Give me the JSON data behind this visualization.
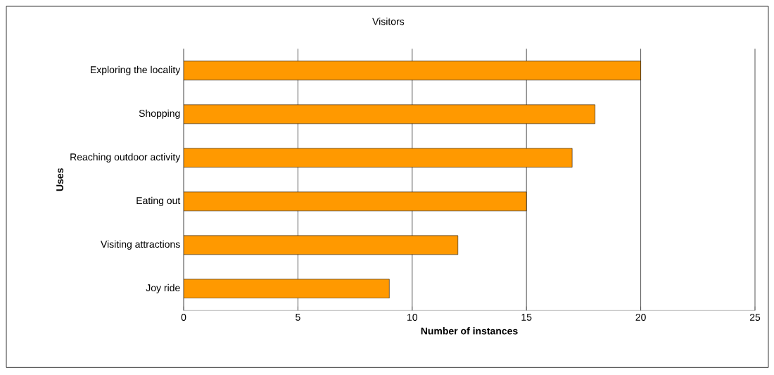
{
  "chart_data": {
    "type": "bar",
    "orientation": "horizontal",
    "title": "Visitors",
    "xlabel": "Number of instances",
    "ylabel": "Uses",
    "categories": [
      "Exploring the locality",
      "Shopping",
      "Reaching outdoor activity",
      "Eating out",
      "Visiting attractions",
      "Joy ride"
    ],
    "values": [
      20,
      18,
      17,
      15,
      12,
      9
    ],
    "color": "#ff9900",
    "xlim": [
      0,
      25
    ],
    "xticks": [
      0,
      5,
      10,
      15,
      20,
      25
    ],
    "grid": "x"
  }
}
